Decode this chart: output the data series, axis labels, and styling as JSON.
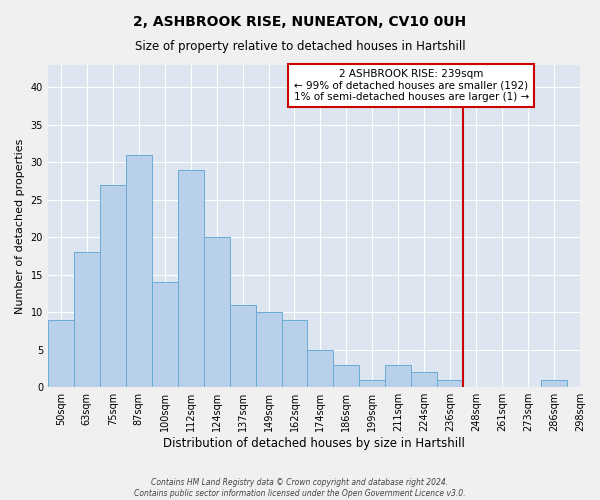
{
  "title": "2, ASHBROOK RISE, NUNEATON, CV10 0UH",
  "subtitle": "Size of property relative to detached houses in Hartshill",
  "xlabel": "Distribution of detached houses by size in Hartshill",
  "ylabel": "Number of detached properties",
  "bar_values": [
    9,
    18,
    27,
    31,
    14,
    29,
    20,
    11,
    10,
    9,
    5,
    3,
    1,
    3,
    2,
    1,
    0,
    0,
    0,
    1
  ],
  "bar_labels": [
    "50sqm",
    "63sqm",
    "75sqm",
    "87sqm",
    "100sqm",
    "112sqm",
    "124sqm",
    "137sqm",
    "149sqm",
    "162sqm",
    "174sqm",
    "186sqm",
    "199sqm",
    "211sqm",
    "224sqm",
    "236sqm",
    "248sqm",
    "261sqm",
    "273sqm",
    "286sqm",
    "298sqm"
  ],
  "bar_color": "#b8d0ea",
  "bar_edge_color": "#6aaad4",
  "background_color": "#dde6f0",
  "grid_color": "#ffffff",
  "vline_index": 15,
  "vline_color": "#cc0000",
  "annotation_text": "2 ASHBROOK RISE: 239sqm\n← 99% of detached houses are smaller (192)\n1% of semi-detached houses are larger (1) →",
  "annotation_box_color": "#ffffff",
  "annotation_box_edge": "#cc0000",
  "ylim": [
    0,
    43
  ],
  "yticks": [
    0,
    5,
    10,
    15,
    20,
    25,
    30,
    35,
    40
  ],
  "footer_line1": "Contains HM Land Registry data © Crown copyright and database right 2024.",
  "footer_line2": "Contains public sector information licensed under the Open Government Licence v3.0."
}
